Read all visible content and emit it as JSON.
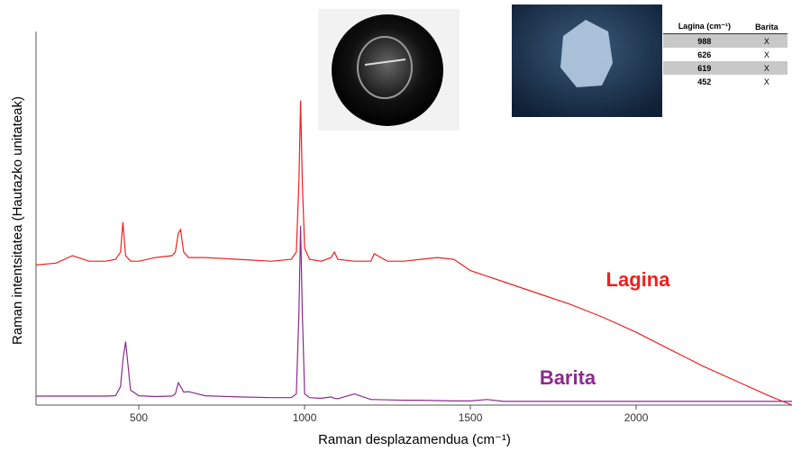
{
  "chart_data": {
    "type": "line",
    "x_label": "Raman desplazamendua (cm⁻¹)",
    "y_label": "Raman intentsitatea (Hautazko unitateak)",
    "x": [
      190,
      250,
      300,
      350,
      400,
      430,
      445,
      452,
      460,
      475,
      500,
      550,
      600,
      610,
      619,
      626,
      635,
      650,
      700,
      800,
      900,
      960,
      975,
      983,
      988,
      993,
      1000,
      1015,
      1050,
      1080,
      1090,
      1100,
      1150,
      1200,
      1210,
      1250,
      1300,
      1350,
      1400,
      1450,
      1500,
      1550,
      1600,
      1700,
      1800,
      1900,
      2000,
      2100,
      2200,
      2300,
      2400,
      2470
    ],
    "series": [
      {
        "name": "Lagina",
        "color": "#ee2020",
        "values": [
          37.5,
          38,
          40,
          38.5,
          38.5,
          39,
          41,
          49,
          40,
          38.5,
          38.5,
          39.5,
          40,
          41,
          46,
          47,
          41,
          39.5,
          39.5,
          39,
          38.5,
          39,
          41,
          60,
          81.5,
          60,
          42,
          39,
          38.5,
          39.5,
          41,
          39,
          38.5,
          38.5,
          40.5,
          38.5,
          38.5,
          39,
          39.5,
          39,
          36,
          34.5,
          33,
          30,
          27,
          23.5,
          19.5,
          15,
          10.5,
          6.5,
          2.5,
          0
        ]
      },
      {
        "name": "Barita",
        "color": "#8b2a8e",
        "values": [
          2.4,
          2.4,
          2.4,
          2.4,
          2.4,
          2.5,
          5,
          12,
          17,
          4,
          2.5,
          2.3,
          2.4,
          3,
          6,
          5,
          3.5,
          3.6,
          2.5,
          2.2,
          2,
          2,
          3,
          25,
          48,
          25,
          3,
          2,
          1.8,
          2.2,
          1.8,
          1.7,
          3,
          1.5,
          1.5,
          1.4,
          1.3,
          1.3,
          1.2,
          1.1,
          1.1,
          1.5,
          1,
          1,
          1,
          1,
          1,
          1,
          1,
          1,
          1,
          1
        ]
      }
    ],
    "xlim": [
      190,
      2470
    ],
    "ylim": [
      0,
      100
    ],
    "xticks": [
      500,
      1000,
      1500,
      2000
    ]
  },
  "table": {
    "header": [
      "Lagina (cm⁻¹)",
      "Barita"
    ],
    "rows": [
      [
        "988",
        "X"
      ],
      [
        "626",
        "X"
      ],
      [
        "619",
        "X"
      ],
      [
        "452",
        "X"
      ]
    ]
  }
}
